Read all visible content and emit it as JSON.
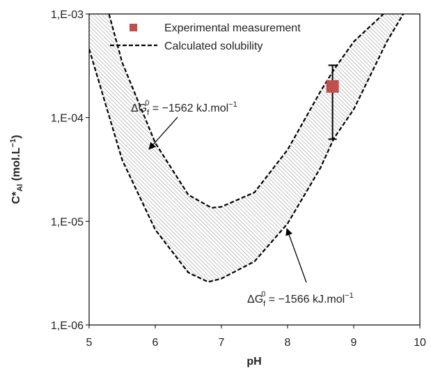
{
  "chart_data": {
    "type": "line",
    "xlabel": "pH",
    "ylabel": [
      "C*",
      "Al",
      " (mol.L",
      "−1",
      ")"
    ],
    "xlim": [
      5,
      10
    ],
    "ylim": [
      1e-06,
      0.001
    ],
    "log_y": true,
    "xticks": [
      5,
      6,
      7,
      8,
      9,
      10
    ],
    "yticks": [
      {
        "value": 1e-06,
        "label": "1,E-06"
      },
      {
        "value": 1e-05,
        "label": "1,E-05"
      },
      {
        "value": 0.0001,
        "label": "1,E-04"
      },
      {
        "value": 0.001,
        "label": "1,E-03"
      }
    ],
    "legend": "upper left",
    "series": [
      {
        "name": "Calculated solubility",
        "color": "#000000",
        "x": [
          5.3,
          5.5,
          6,
          6.5,
          6.85,
          7,
          7.5,
          8,
          8.5,
          8.7,
          9,
          9.45
        ],
        "values": [
          0.001,
          0.00034,
          5.7e-05,
          1.8e-05,
          1.35e-05,
          1.38e-05,
          1.9e-05,
          4.9e-05,
          0.00018,
          0.00029,
          0.00054,
          0.001
        ]
      },
      {
        "color": "#000000",
        "x": [
          5,
          5.5,
          6,
          6.5,
          6.8,
          7,
          7.5,
          8,
          8.5,
          8.7,
          9,
          9.5,
          9.75
        ],
        "values": [
          0.00046,
          3.9e-05,
          8.3e-06,
          3.2e-06,
          2.6e-06,
          2.8e-06,
          4.1e-06,
          9.5e-06,
          3.3e-05,
          6.3e-05,
          0.00012,
          0.00054,
          0.001
        ]
      }
    ],
    "points": {
      "name": "Experimental measurement",
      "color": "#c0504d",
      "x": [
        8.68
      ],
      "values": [
        0.0002
      ],
      "err_low": [
        6.2e-05
      ],
      "err_high": [
        0.00032
      ]
    },
    "annotations": [
      [
        "ΔG",
        "f",
        "0",
        " = −1562 kJ.mol",
        "−1"
      ],
      [
        "ΔG",
        "f",
        "0",
        " = −1566 kJ.mol",
        "−1"
      ]
    ]
  }
}
